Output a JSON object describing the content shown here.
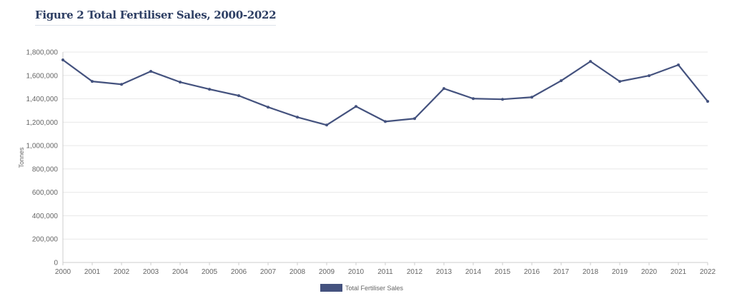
{
  "chart_data": {
    "type": "line",
    "title": "Figure 2 Total Fertiliser Sales, 2000-2022",
    "xlabel": "",
    "ylabel": "Tonnes",
    "ylim": [
      0,
      1800000
    ],
    "yticks": [
      "0",
      "200,000",
      "400,000",
      "600,000",
      "800,000",
      "1,000,000",
      "1,200,000",
      "1,400,000",
      "1,600,000",
      "1,800,000"
    ],
    "grid": true,
    "legend_position": "bottom",
    "categories": [
      "2000",
      "2001",
      "2002",
      "2003",
      "2004",
      "2005",
      "2006",
      "2007",
      "2008",
      "2009",
      "2010",
      "2011",
      "2012",
      "2013",
      "2014",
      "2015",
      "2016",
      "2017",
      "2018",
      "2019",
      "2020",
      "2021",
      "2022"
    ],
    "series": [
      {
        "name": "Total Fertiliser Sales",
        "color": "#44527e",
        "values": [
          1733000,
          1549000,
          1524000,
          1635000,
          1543000,
          1482000,
          1427000,
          1329000,
          1243000,
          1176000,
          1335000,
          1206000,
          1231000,
          1488000,
          1402000,
          1396000,
          1414000,
          1555000,
          1720000,
          1549000,
          1598000,
          1690000,
          1378000
        ]
      }
    ]
  }
}
